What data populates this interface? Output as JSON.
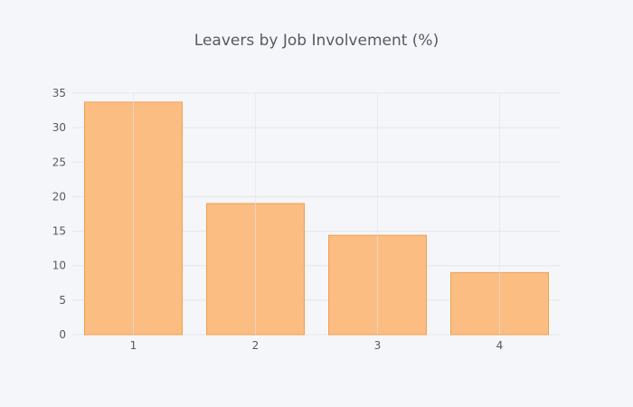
{
  "chart_data": {
    "type": "bar",
    "title": "Leavers by Job Involvement (%)",
    "xlabel": "",
    "ylabel": "",
    "categories": [
      "1",
      "2",
      "3",
      "4"
    ],
    "values": [
      33.7,
      19.0,
      14.4,
      9.0
    ],
    "ylim": [
      0,
      35
    ],
    "yticks": [
      0,
      5,
      10,
      15,
      20,
      25,
      30,
      35
    ],
    "grid": true,
    "colors": {
      "bar_fill": "#fbbd82",
      "bar_stroke": "#f0a050",
      "background": "#f5f6f9"
    }
  }
}
